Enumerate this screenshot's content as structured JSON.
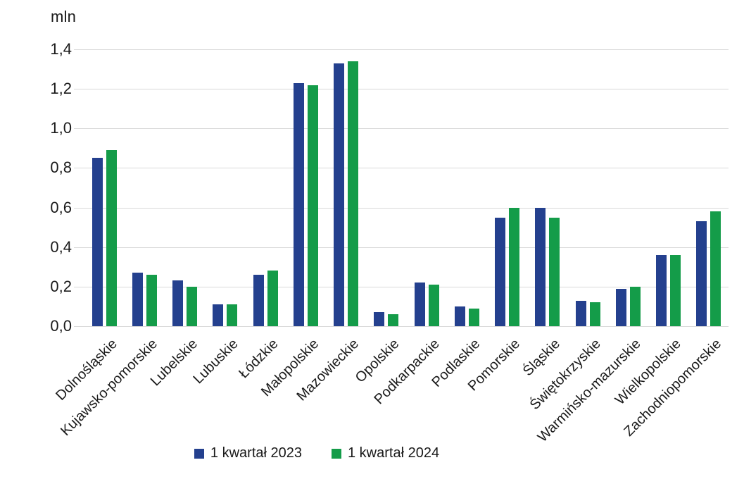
{
  "unit_label": "mln",
  "colors": {
    "series_2023": "#24408E",
    "series_2024": "#149C49",
    "gridline": "#D9D9D9",
    "text": "#1A1A1A",
    "background": "#FFFFFF"
  },
  "chart_data": {
    "type": "bar",
    "title": "",
    "ylabel": "mln",
    "xlabel": "",
    "ylim": [
      0,
      1.4
    ],
    "grid": true,
    "legend_position": "bottom",
    "yticks_display": [
      "1,4",
      "1,2",
      "1,0",
      "0,8",
      "0,6",
      "0,4",
      "0,2",
      "0,0"
    ],
    "ytick_values": [
      1.4,
      1.2,
      1.0,
      0.8,
      0.6,
      0.4,
      0.2,
      0.0
    ],
    "categories": [
      "Dolnośląskie",
      "Kujawsko-pomorskie",
      "Lubelskie",
      "Lubuskie",
      "Łódzkie",
      "Małopolskie",
      "Mazowieckie",
      "Opolskie",
      "Podkarpackie",
      "Podlaskie",
      "Pomorskie",
      "Śląskie",
      "Świętokrzyskie",
      "Warmińsko-mazurskie",
      "Wielkopolskie",
      "Zachodniopomorskie"
    ],
    "series": [
      {
        "name": "1 kwartał 2023",
        "color": "#24408E",
        "values": [
          0.85,
          0.27,
          0.23,
          0.11,
          0.26,
          1.23,
          1.33,
          0.07,
          0.22,
          0.1,
          0.55,
          0.6,
          0.13,
          0.19,
          0.36,
          0.53
        ]
      },
      {
        "name": "1 kwartał 2024",
        "color": "#149C49",
        "values": [
          0.89,
          0.26,
          0.2,
          0.11,
          0.28,
          1.22,
          1.34,
          0.06,
          0.21,
          0.09,
          0.6,
          0.55,
          0.12,
          0.2,
          0.36,
          0.58
        ]
      }
    ]
  }
}
